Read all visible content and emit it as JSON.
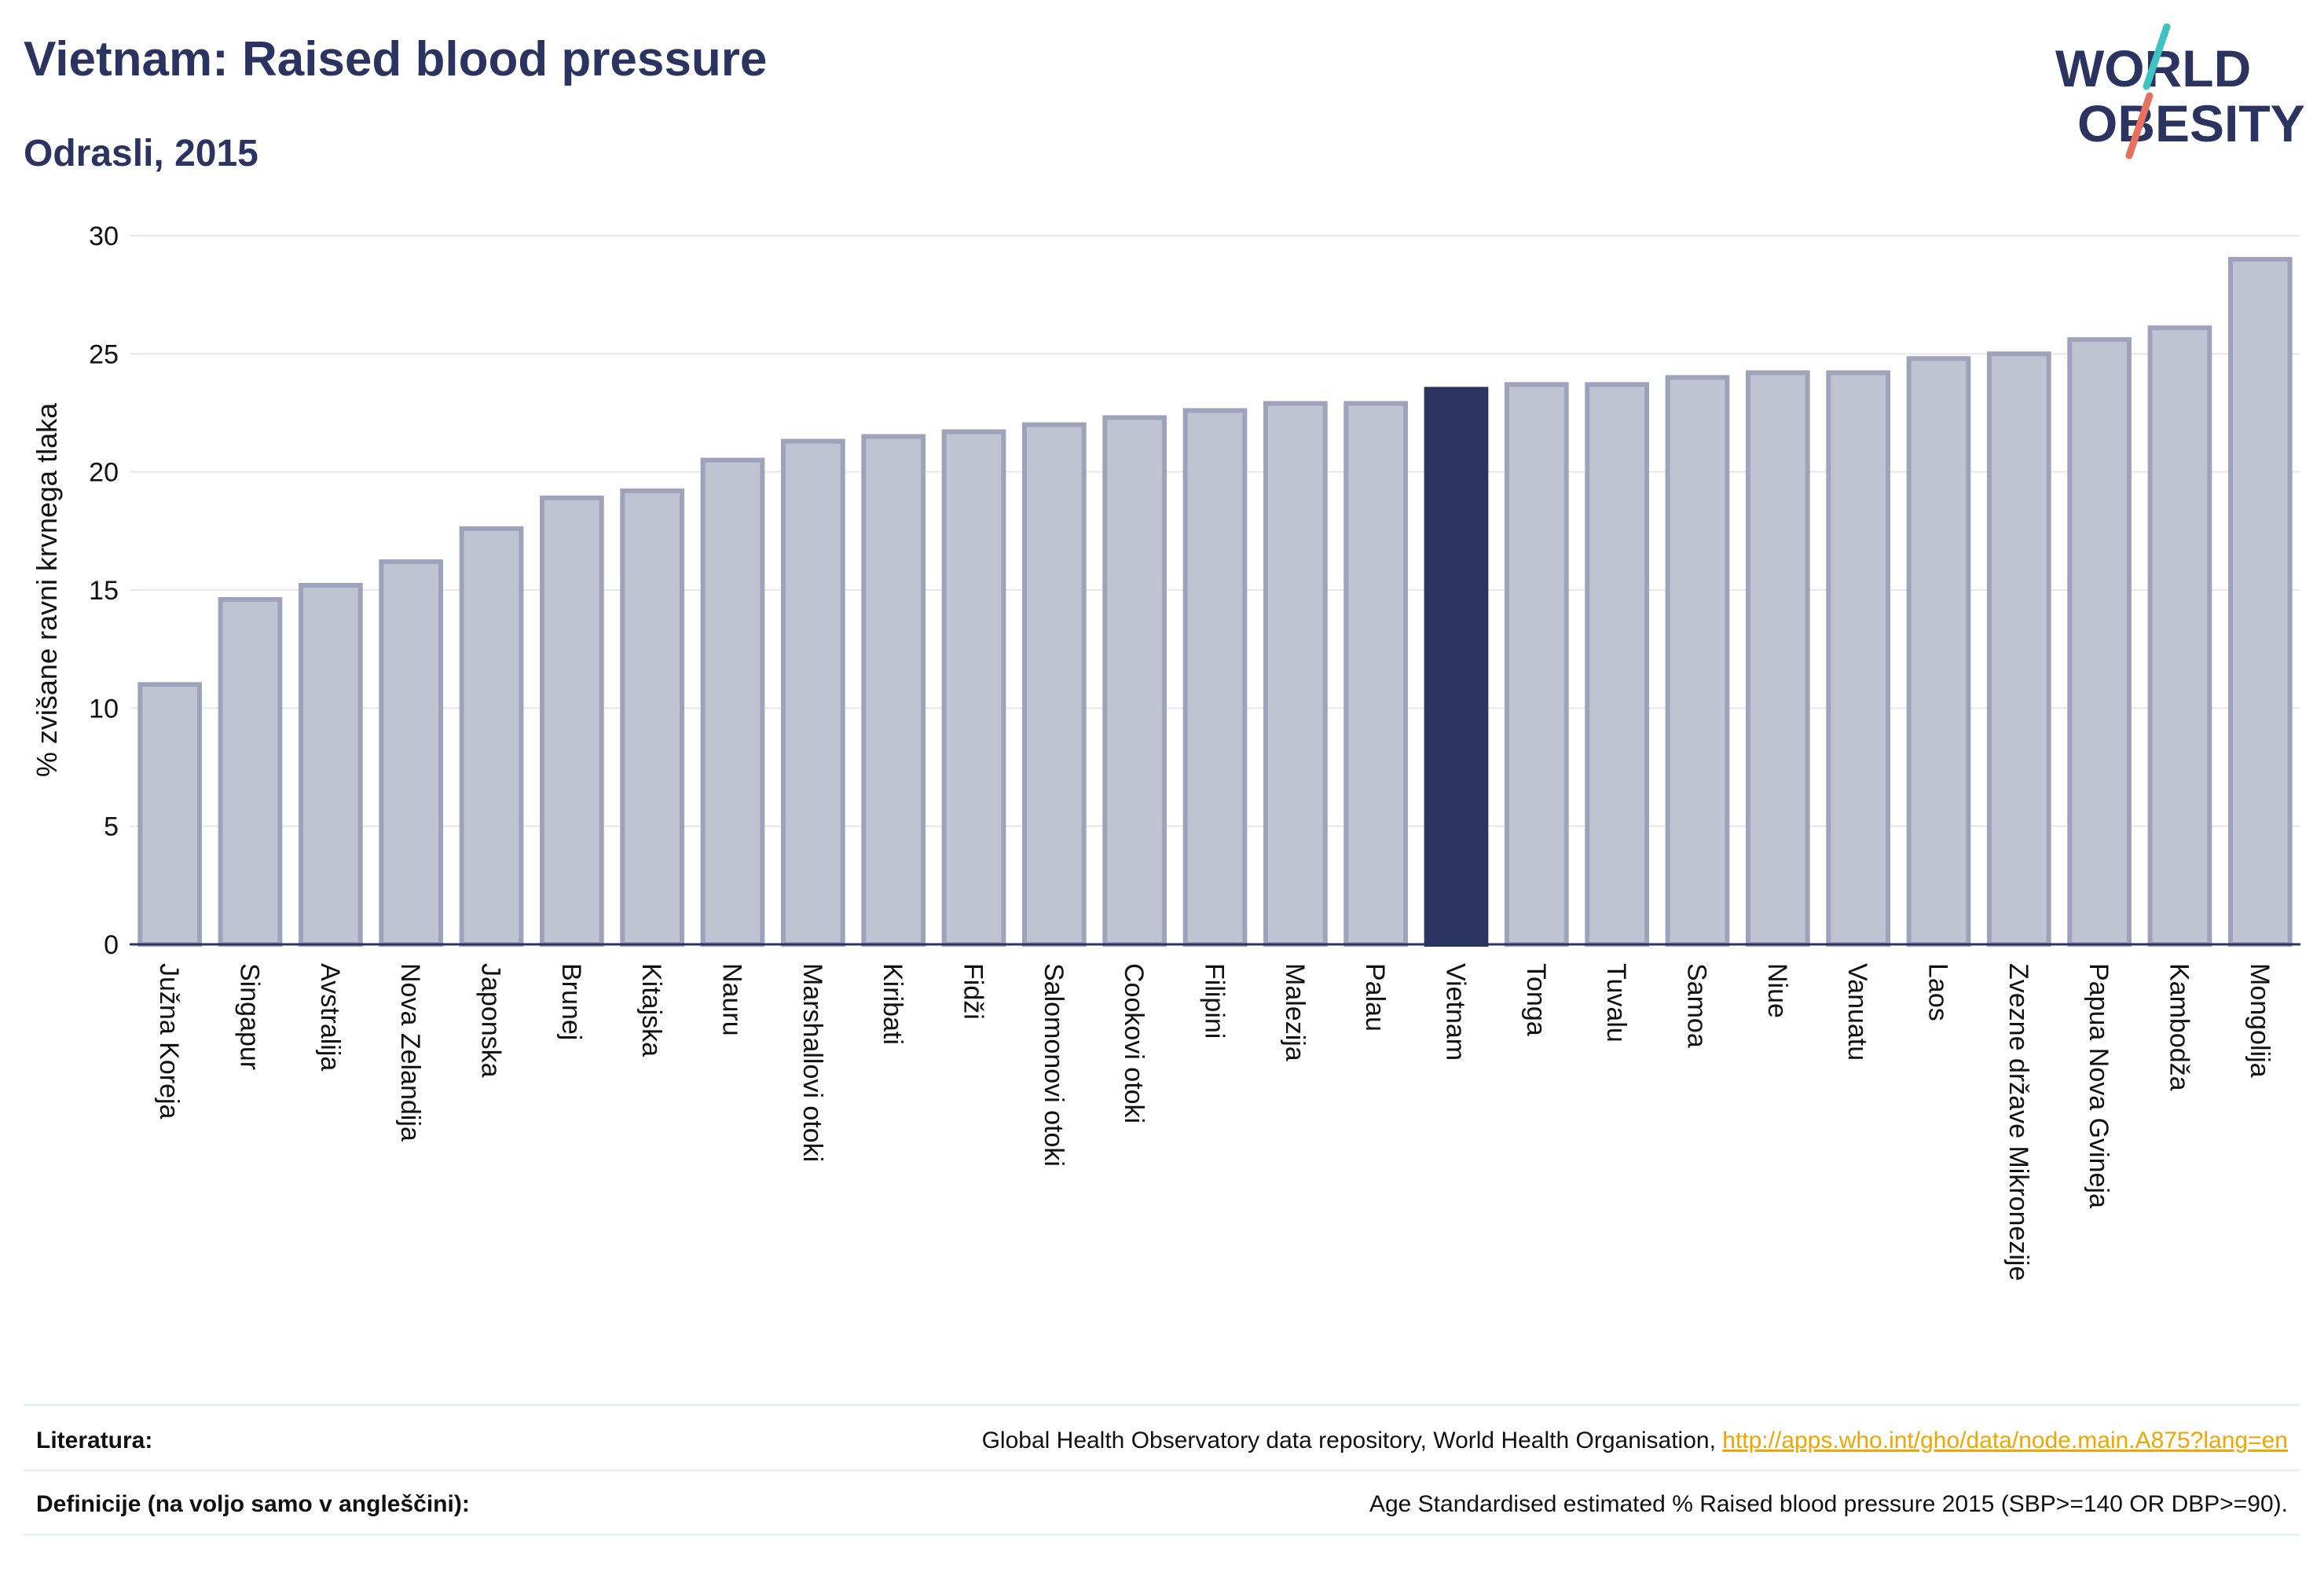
{
  "header": {
    "title": "Vietnam: Raised blood pressure",
    "subtitle": "Odrasli, 2015"
  },
  "logo": {
    "line1": "WORLD",
    "line2": "OBESITY",
    "color": "#2b3461",
    "accent_teal": "#3ec2c2",
    "accent_coral": "#e7705f"
  },
  "colors": {
    "highlight": "#2b3461",
    "bar_fill": "#c0c3d1",
    "bar_stroke": "#9ea3bc",
    "grid": "#e6e8ee",
    "axis": "#2b3461"
  },
  "chart_data": {
    "type": "bar",
    "title": "Vietnam: Raised blood pressure",
    "subtitle": "Odrasli, 2015",
    "xlabel": "",
    "ylabel": "% zvišane ravni krvnega tlaka",
    "ylim": [
      0,
      30
    ],
    "yticks": [
      0,
      5,
      10,
      15,
      20,
      25,
      30
    ],
    "grid": true,
    "highlight_category": "Vietnam",
    "categories": [
      "Južna Koreja",
      "Singapur",
      "Avstralija",
      "Nova Zelandija",
      "Japonska",
      "Brunej",
      "Kitajska",
      "Nauru",
      "Marshallovi otoki",
      "Kiribati",
      "Fidži",
      "Salomonovi otoki",
      "Cookovi otoki",
      "Filipini",
      "Malezija",
      "Palau",
      "Vietnam",
      "Tonga",
      "Tuvalu",
      "Samoa",
      "Niue",
      "Vanuatu",
      "Laos",
      "Zvezne države Mikronezije",
      "Papua Nova Gvineja",
      "Kambodža",
      "Mongolija"
    ],
    "values": [
      11.0,
      14.6,
      15.2,
      16.2,
      17.6,
      18.9,
      19.2,
      20.5,
      21.3,
      21.5,
      21.7,
      22.0,
      22.3,
      22.6,
      22.9,
      22.9,
      23.5,
      23.7,
      23.7,
      24.0,
      24.2,
      24.2,
      24.8,
      25.0,
      25.6,
      26.1,
      29.0
    ]
  },
  "footer": {
    "sources_label": "Literatura:",
    "sources_text": "Global Health Observatory data repository, World Health Organisation, ",
    "sources_link": "http://apps.who.int/gho/data/node.main.A875?lang=en",
    "definitions_label": "Definicije (na voljo samo v angleščini):",
    "definitions_text": "Age Standardised estimated % Raised blood pressure 2015 (SBP>=140 OR DBP>=90)."
  }
}
